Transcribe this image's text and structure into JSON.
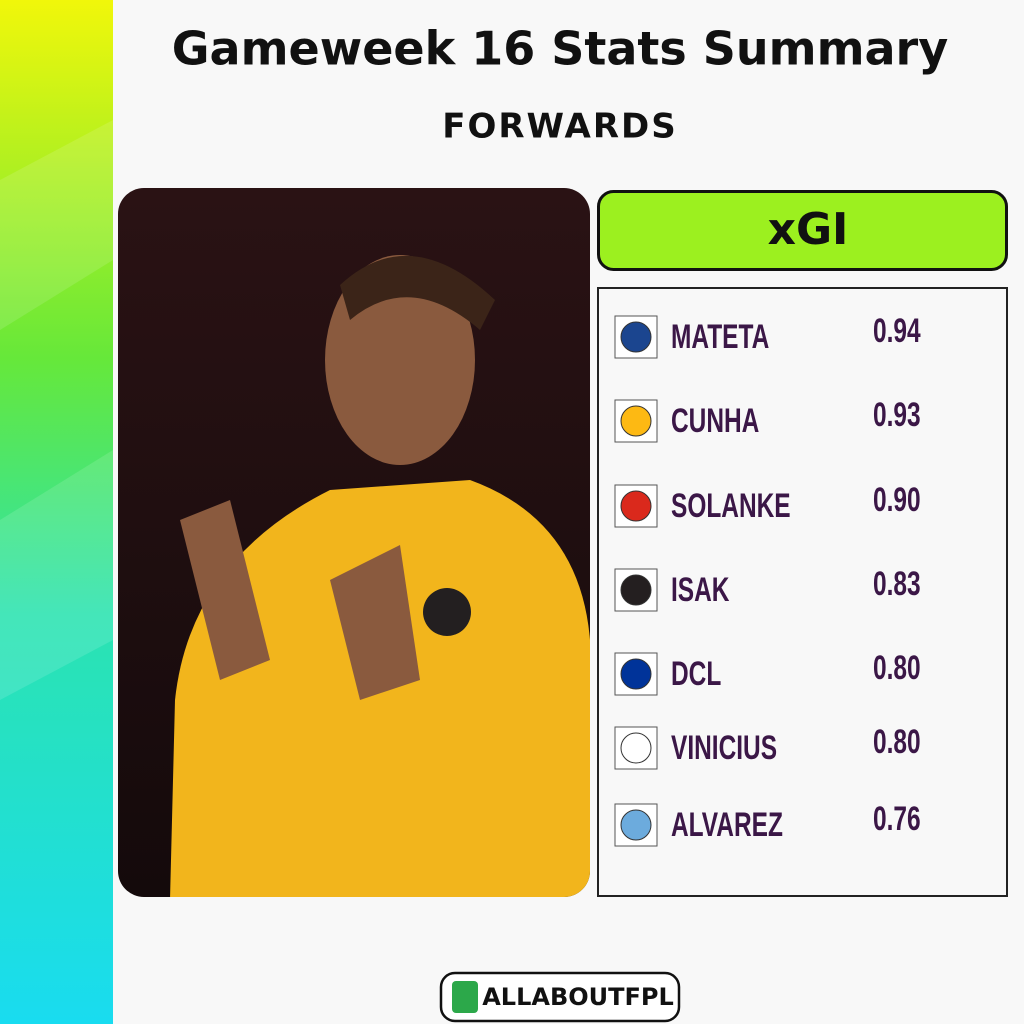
{
  "header": {
    "title": "Gameweek 16 Stats Summary",
    "subtitle": "FORWARDS"
  },
  "panel": {
    "title": "xGI",
    "rows": [
      {
        "name": "MATETA",
        "value": "0.94"
      },
      {
        "name": "CUNHA",
        "value": "0.93"
      },
      {
        "name": "SOLANKE",
        "value": "0.90"
      },
      {
        "name": "ISAK",
        "value": "0.83"
      },
      {
        "name": "DCL",
        "value": "0.80"
      },
      {
        "name": "VINICIUS",
        "value": "0.80"
      },
      {
        "name": "ALVAREZ",
        "value": "0.76"
      }
    ]
  },
  "footer": {
    "brand": "ALLABOUTFPL"
  }
}
